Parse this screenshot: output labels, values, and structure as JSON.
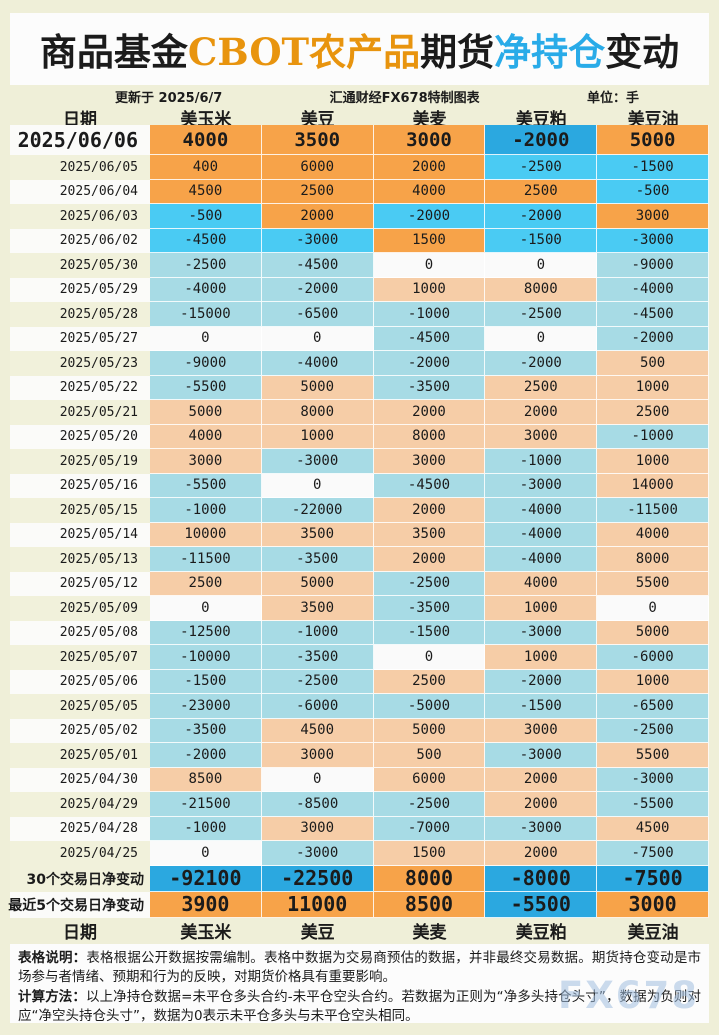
{
  "title": {
    "segments": [
      {
        "text": "商品基金",
        "color": "#1b1b1b"
      },
      {
        "text": "CBOT农产品",
        "color": "#E8940E"
      },
      {
        "text": "期货",
        "color": "#1b1b1b"
      },
      {
        "text": "净持仓",
        "color": "#29ABE8"
      },
      {
        "text": "变动",
        "color": "#1b1b1b"
      }
    ]
  },
  "subheader": {
    "updated": "更新于 2025/6/7",
    "source": "汇通财经FX678特制图表",
    "unit": "单位：手"
  },
  "chart_data": {
    "type": "table",
    "title": "商品基金CBOT农产品期货净持仓变动",
    "unit": "手",
    "columns": [
      "日期",
      "美玉米",
      "美豆",
      "美麦",
      "美豆粕",
      "美豆油"
    ],
    "rows": [
      [
        "2025/06/06",
        4000,
        3500,
        3000,
        -2000,
        5000
      ],
      [
        "2025/06/05",
        400,
        6000,
        2000,
        -2500,
        -1500
      ],
      [
        "2025/06/04",
        4500,
        2500,
        4000,
        2500,
        -500
      ],
      [
        "2025/06/03",
        -500,
        2000,
        -2000,
        -2000,
        3000
      ],
      [
        "2025/06/02",
        -4500,
        -3000,
        1500,
        -1500,
        -3000
      ],
      [
        "2025/05/30",
        -2500,
        -4500,
        0,
        0,
        -9000
      ],
      [
        "2025/05/29",
        -4000,
        -2000,
        1000,
        8000,
        -4000
      ],
      [
        "2025/05/28",
        -15000,
        -6500,
        -1000,
        -2500,
        -4500
      ],
      [
        "2025/05/27",
        0,
        0,
        -4500,
        0,
        -2000
      ],
      [
        "2025/05/23",
        -9000,
        -4000,
        -2000,
        -2000,
        500
      ],
      [
        "2025/05/22",
        -5500,
        5000,
        -3500,
        2500,
        1000
      ],
      [
        "2025/05/21",
        5000,
        8000,
        2000,
        2000,
        2500
      ],
      [
        "2025/05/20",
        4000,
        1000,
        8000,
        3000,
        -1000
      ],
      [
        "2025/05/19",
        3000,
        -3000,
        3000,
        -1000,
        1000
      ],
      [
        "2025/05/16",
        -5500,
        0,
        -4500,
        -3000,
        14000
      ],
      [
        "2025/05/15",
        -1000,
        -22000,
        2000,
        -4000,
        -11500
      ],
      [
        "2025/05/14",
        10000,
        3500,
        3500,
        -4000,
        4000
      ],
      [
        "2025/05/13",
        -11500,
        -3500,
        2000,
        -4000,
        8000
      ],
      [
        "2025/05/12",
        2500,
        5000,
        -2500,
        4000,
        5500
      ],
      [
        "2025/05/09",
        0,
        3500,
        -3500,
        1000,
        0
      ],
      [
        "2025/05/08",
        -12500,
        -1000,
        -1500,
        -3000,
        5000
      ],
      [
        "2025/05/07",
        -10000,
        -3500,
        0,
        1000,
        -6000
      ],
      [
        "2025/05/06",
        -1500,
        -2500,
        2500,
        -2000,
        1000
      ],
      [
        "2025/05/05",
        -23000,
        -6000,
        -5000,
        -1500,
        -6500
      ],
      [
        "2025/05/02",
        -3500,
        4500,
        5000,
        3000,
        -2500
      ],
      [
        "2025/05/01",
        -2000,
        3000,
        500,
        -3000,
        5500
      ],
      [
        "2025/04/30",
        8500,
        0,
        6000,
        2000,
        -3000
      ],
      [
        "2025/04/29",
        -21500,
        -8500,
        -2500,
        2000,
        -5500
      ],
      [
        "2025/04/28",
        -1000,
        3000,
        -7000,
        -3000,
        4500
      ],
      [
        "2025/04/25",
        0,
        -3000,
        1500,
        2000,
        -7500
      ]
    ],
    "summary_rows": [
      [
        "30个交易日净变动",
        -92100,
        -22500,
        8000,
        -8000,
        -7500
      ],
      [
        "最近5个交易日净变动",
        3900,
        11000,
        8500,
        -5500,
        3000
      ]
    ]
  },
  "notes": [
    {
      "label": "表格说明：",
      "text": "表格根据公开数据按需编制。表格中数据为交易商预估的数据，并非最终交易数据。期货持仓变动是市场参与者情绪、预期和行为的反映，对期货价格具有重要影响。"
    },
    {
      "label": "计算方法：",
      "text": "以上净持仓数据=未平仓多头合约-未平仓空头合约。若数据为正则为“净多头持仓头寸”，数据为负则对应“净空头持仓头寸”，数据为0表示未平仓多头与未平仓空头相同。"
    }
  ],
  "watermark": "FX678",
  "colors": {
    "page_bg": "#EFEFD8",
    "card_bg": "#FCFCFC",
    "row_white": "#FBFBF9",
    "row_beige": "#F1F1DB",
    "strong_orange": "#F7A349",
    "strong_blue": "#2BA8E0",
    "cyan": "#4ACBF3",
    "pastel_orange": "#F6CDA7",
    "pastel_blue": "#A7DBE5",
    "zero_bg": "#FAFAFA",
    "title_orange": "#E8940E",
    "title_blue": "#29ABE8"
  }
}
